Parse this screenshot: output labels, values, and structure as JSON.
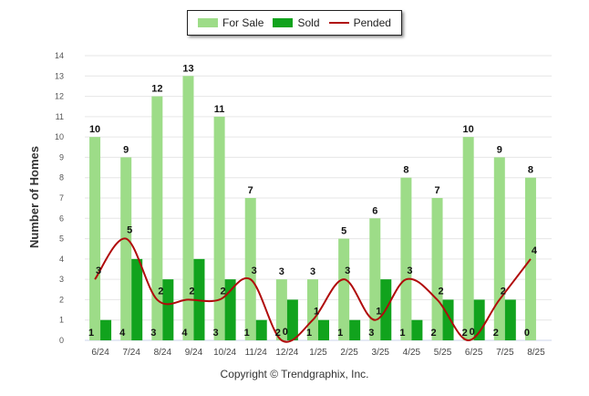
{
  "legend": {
    "for_sale": "For Sale",
    "sold": "Sold",
    "pended": "Pended"
  },
  "footer": "Copyright © Trendgraphix, Inc.",
  "colors": {
    "for_sale": "#9ddc88",
    "sold": "#11a31d",
    "pended": "#b00b0b",
    "grid": "#e6e6e6",
    "axis": "#ccd6eb"
  },
  "chart_data": {
    "type": "bar",
    "ylabel": "Number of Homes",
    "xlabel": "",
    "ylim": [
      0,
      14
    ],
    "yticks": [
      0,
      1,
      2,
      3,
      4,
      5,
      6,
      7,
      8,
      9,
      10,
      11,
      12,
      13,
      14
    ],
    "grid": true,
    "legend_position": "top-center",
    "categories": [
      "6/24",
      "7/24",
      "8/24",
      "9/24",
      "10/24",
      "11/24",
      "12/24",
      "1/25",
      "2/25",
      "3/25",
      "4/25",
      "5/25",
      "6/25",
      "7/25",
      "8/25"
    ],
    "series": [
      {
        "name": "For Sale",
        "type": "bar",
        "values": [
          10,
          9,
          12,
          13,
          11,
          7,
          3,
          3,
          5,
          6,
          8,
          7,
          10,
          9,
          8
        ]
      },
      {
        "name": "Sold",
        "type": "bar",
        "values": [
          1,
          4,
          3,
          4,
          3,
          1,
          2,
          1,
          1,
          3,
          1,
          2,
          2,
          2,
          0
        ]
      },
      {
        "name": "Pended",
        "type": "line",
        "smooth": true,
        "values": [
          3,
          5,
          2,
          2,
          2,
          3,
          0,
          1,
          3,
          1,
          3,
          2,
          0,
          2,
          4
        ]
      }
    ]
  }
}
